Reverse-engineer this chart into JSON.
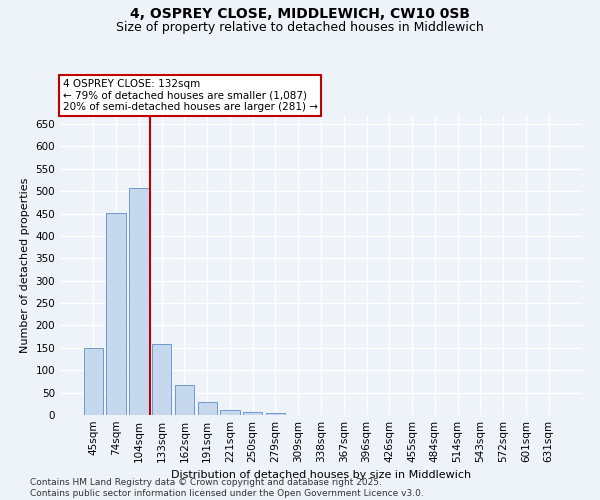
{
  "title_line1": "4, OSPREY CLOSE, MIDDLEWICH, CW10 0SB",
  "title_line2": "Size of property relative to detached houses in Middlewich",
  "xlabel": "Distribution of detached houses by size in Middlewich",
  "ylabel": "Number of detached properties",
  "categories": [
    "45sqm",
    "74sqm",
    "104sqm",
    "133sqm",
    "162sqm",
    "191sqm",
    "221sqm",
    "250sqm",
    "279sqm",
    "309sqm",
    "338sqm",
    "367sqm",
    "396sqm",
    "426sqm",
    "455sqm",
    "484sqm",
    "514sqm",
    "543sqm",
    "572sqm",
    "601sqm",
    "631sqm"
  ],
  "values": [
    150,
    451,
    508,
    158,
    67,
    30,
    12,
    7,
    4,
    0,
    0,
    0,
    1,
    0,
    0,
    0,
    0,
    0,
    0,
    0,
    1
  ],
  "bar_color": "#c5d8ee",
  "bar_edge_color": "#5b8dc8",
  "vline_color": "#c00000",
  "annotation_text": "4 OSPREY CLOSE: 132sqm\n← 79% of detached houses are smaller (1,087)\n20% of semi-detached houses are larger (281) →",
  "annotation_box_color": "#ffffff",
  "annotation_box_edge": "#c00000",
  "ylim": [
    0,
    670
  ],
  "yticks": [
    0,
    50,
    100,
    150,
    200,
    250,
    300,
    350,
    400,
    450,
    500,
    550,
    600,
    650
  ],
  "background_color": "#eef2f9",
  "grid_color": "#ffffff",
  "footer_text": "Contains HM Land Registry data © Crown copyright and database right 2025.\nContains public sector information licensed under the Open Government Licence v3.0.",
  "title_fontsize": 10,
  "subtitle_fontsize": 9,
  "axis_label_fontsize": 8,
  "tick_fontsize": 7.5,
  "footer_fontsize": 6.5
}
